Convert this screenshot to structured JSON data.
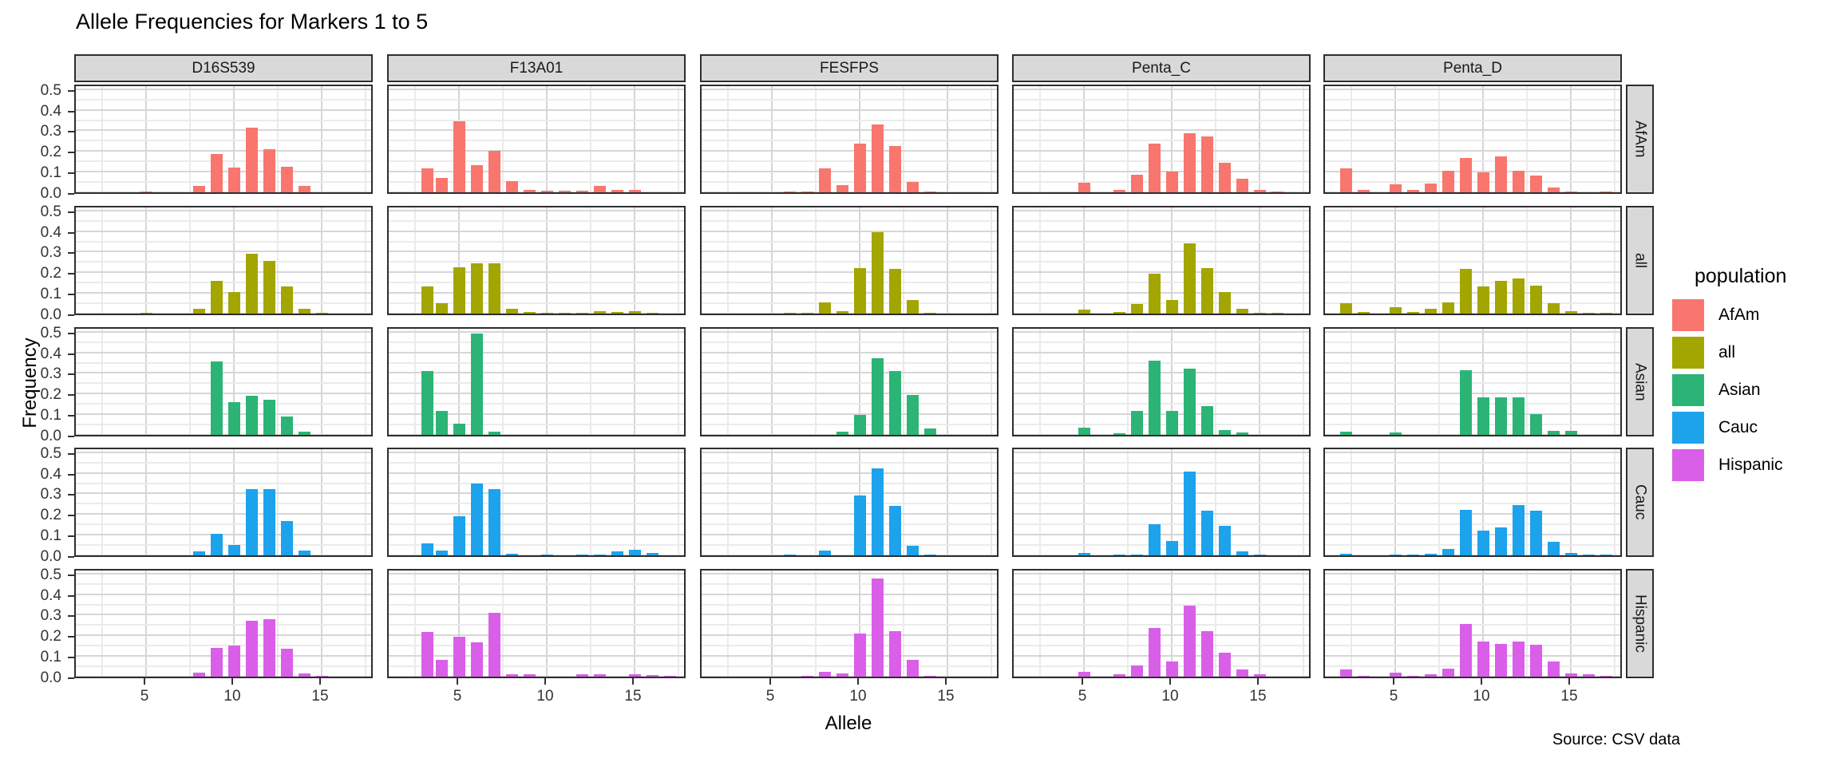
{
  "title": "Allele Frequencies for Markers 1 to 5",
  "caption": "Source: CSV data",
  "axes": {
    "x_label": "Allele",
    "y_label": "Frequency"
  },
  "legend": {
    "title": "population",
    "items": [
      {
        "label": "AfAm",
        "color": "#F8766D"
      },
      {
        "label": "all",
        "color": "#A3A500"
      },
      {
        "label": "Asian",
        "color": "#2CB476"
      },
      {
        "label": "Cauc",
        "color": "#1CA3EC"
      },
      {
        "label": "Hispanic",
        "color": "#DA5FE8"
      }
    ]
  },
  "chart_data": {
    "type": "bar",
    "title": "Allele Frequencies for Markers 1 to 5",
    "xlabel": "Allele",
    "ylabel": "Frequency",
    "facet_columns": [
      "D16S539",
      "F13A01",
      "FESFPS",
      "Penta_C",
      "Penta_D"
    ],
    "facet_rows": [
      "AfAm",
      "all",
      "Asian",
      "Cauc",
      "Hispanic"
    ],
    "x_ticks": [
      5,
      10,
      15
    ],
    "x_tick_labels": [
      "5",
      "10",
      "15"
    ],
    "x_minor_ticks": [
      2.5,
      7.5,
      12.5,
      17.5
    ],
    "xlim": [
      1,
      18
    ],
    "y_ticks": [
      0.0,
      0.1,
      0.2,
      0.3,
      0.4,
      0.5
    ],
    "y_tick_labels": [
      "0.0",
      "0.1",
      "0.2",
      "0.3",
      "0.4",
      "0.5"
    ],
    "y_minor_ticks": [
      0.05,
      0.15,
      0.25,
      0.35,
      0.45
    ],
    "ylim": [
      0,
      0.53
    ],
    "grid": true,
    "legend_position": "right",
    "panels": {
      "D16S539": {
        "AfAm": {
          "alleles": [
            5,
            8,
            9,
            10,
            11,
            12,
            13,
            14
          ],
          "freqs": [
            0.005,
            0.03,
            0.185,
            0.12,
            0.315,
            0.21,
            0.125,
            0.03
          ]
        },
        "all": {
          "alleles": [
            5,
            8,
            9,
            10,
            11,
            12,
            13,
            14,
            15
          ],
          "freqs": [
            0.004,
            0.022,
            0.16,
            0.105,
            0.29,
            0.255,
            0.13,
            0.022,
            0.004
          ]
        },
        "Asian": {
          "alleles": [
            9,
            10,
            11,
            12,
            13,
            14
          ],
          "freqs": [
            0.355,
            0.16,
            0.19,
            0.17,
            0.09,
            0.015
          ]
        },
        "Cauc": {
          "alleles": [
            8,
            9,
            10,
            11,
            12,
            13,
            14
          ],
          "freqs": [
            0.018,
            0.105,
            0.05,
            0.32,
            0.32,
            0.165,
            0.022
          ]
        },
        "Hispanic": {
          "alleles": [
            8,
            9,
            10,
            11,
            12,
            13,
            14,
            15
          ],
          "freqs": [
            0.02,
            0.14,
            0.15,
            0.27,
            0.28,
            0.135,
            0.015,
            0.004
          ]
        }
      },
      "F13A01": {
        "AfAm": {
          "alleles": [
            3.2,
            4,
            5,
            6,
            7,
            8,
            9,
            10,
            11,
            12,
            13,
            14,
            15
          ],
          "freqs": [
            0.115,
            0.07,
            0.345,
            0.13,
            0.2,
            0.055,
            0.012,
            0.008,
            0.008,
            0.008,
            0.03,
            0.013,
            0.012
          ]
        },
        "all": {
          "alleles": [
            3.2,
            4,
            5,
            6,
            7,
            8,
            9,
            10,
            11,
            12,
            13,
            14,
            15,
            16
          ],
          "freqs": [
            0.13,
            0.05,
            0.225,
            0.245,
            0.245,
            0.022,
            0.006,
            0.005,
            0.005,
            0.005,
            0.012,
            0.008,
            0.012,
            0.005
          ]
        },
        "Asian": {
          "alleles": [
            3.2,
            4,
            5,
            6,
            7
          ],
          "freqs": [
            0.31,
            0.115,
            0.055,
            0.49,
            0.015
          ]
        },
        "Cauc": {
          "alleles": [
            3.2,
            4,
            5,
            6,
            7,
            8,
            10,
            12,
            13,
            14,
            15,
            16
          ],
          "freqs": [
            0.06,
            0.022,
            0.19,
            0.35,
            0.32,
            0.006,
            0.004,
            0.004,
            0.004,
            0.018,
            0.028,
            0.01
          ]
        },
        "Hispanic": {
          "alleles": [
            3.2,
            4,
            5,
            6,
            7,
            8,
            9,
            12,
            13,
            15,
            16,
            17
          ],
          "freqs": [
            0.215,
            0.08,
            0.195,
            0.165,
            0.31,
            0.012,
            0.012,
            0.01,
            0.01,
            0.01,
            0.008,
            0.005
          ]
        }
      },
      "FESFPS": {
        "AfAm": {
          "alleles": [
            6,
            7,
            8,
            9,
            10,
            11,
            12,
            13,
            14
          ],
          "freqs": [
            0.005,
            0.005,
            0.115,
            0.035,
            0.235,
            0.33,
            0.225,
            0.05,
            0.004
          ]
        },
        "all": {
          "alleles": [
            6,
            7,
            8,
            9,
            10,
            11,
            12,
            13,
            14
          ],
          "freqs": [
            0.004,
            0.004,
            0.055,
            0.012,
            0.22,
            0.395,
            0.215,
            0.065,
            0.005
          ]
        },
        "Asian": {
          "alleles": [
            9,
            10,
            11,
            12,
            13,
            14
          ],
          "freqs": [
            0.015,
            0.095,
            0.37,
            0.31,
            0.195,
            0.03
          ]
        },
        "Cauc": {
          "alleles": [
            6,
            8,
            10,
            11,
            12,
            13,
            14
          ],
          "freqs": [
            0.004,
            0.025,
            0.29,
            0.42,
            0.24,
            0.045,
            0.003
          ]
        },
        "Hispanic": {
          "alleles": [
            7,
            8,
            9,
            10,
            11,
            12,
            13,
            14
          ],
          "freqs": [
            0.005,
            0.022,
            0.015,
            0.21,
            0.475,
            0.22,
            0.08,
            0.004
          ]
        }
      },
      "Penta_C": {
        "AfAm": {
          "alleles": [
            5,
            7,
            8,
            9,
            10,
            11,
            12,
            13,
            14,
            15,
            16
          ],
          "freqs": [
            0.045,
            0.01,
            0.085,
            0.235,
            0.1,
            0.285,
            0.27,
            0.145,
            0.065,
            0.012,
            0.005
          ]
        },
        "all": {
          "alleles": [
            5,
            7,
            8,
            9,
            10,
            11,
            12,
            13,
            14,
            15,
            16
          ],
          "freqs": [
            0.02,
            0.008,
            0.045,
            0.195,
            0.065,
            0.34,
            0.22,
            0.105,
            0.025,
            0.005,
            0.003
          ]
        },
        "Asian": {
          "alleles": [
            5,
            7,
            8,
            9,
            10,
            11,
            12,
            13,
            14
          ],
          "freqs": [
            0.035,
            0.008,
            0.115,
            0.36,
            0.115,
            0.32,
            0.14,
            0.025,
            0.012
          ]
        },
        "Cauc": {
          "alleles": [
            5,
            7,
            8,
            9,
            10,
            11,
            12,
            13,
            14,
            15
          ],
          "freqs": [
            0.012,
            0.005,
            0.005,
            0.15,
            0.07,
            0.405,
            0.215,
            0.145,
            0.02,
            0.004
          ]
        },
        "Hispanic": {
          "alleles": [
            5,
            7,
            8,
            9,
            10,
            11,
            12,
            13,
            14,
            15
          ],
          "freqs": [
            0.022,
            0.01,
            0.055,
            0.235,
            0.075,
            0.345,
            0.22,
            0.115,
            0.035,
            0.012
          ]
        }
      },
      "Penta_D": {
        "AfAm": {
          "alleles": [
            2.2,
            3.2,
            5,
            6,
            7,
            8,
            9,
            10,
            11,
            12,
            13,
            14,
            15,
            17
          ],
          "freqs": [
            0.115,
            0.012,
            0.04,
            0.013,
            0.044,
            0.105,
            0.165,
            0.095,
            0.175,
            0.105,
            0.08,
            0.025,
            0.004,
            0.004
          ]
        },
        "all": {
          "alleles": [
            2.2,
            3.2,
            5,
            6,
            7,
            8,
            9,
            10,
            11,
            12,
            13,
            14,
            15,
            16,
            17
          ],
          "freqs": [
            0.05,
            0.008,
            0.03,
            0.008,
            0.025,
            0.055,
            0.215,
            0.13,
            0.16,
            0.17,
            0.135,
            0.05,
            0.012,
            0.005,
            0.004
          ]
        },
        "Asian": {
          "alleles": [
            2.2,
            5,
            9,
            10,
            11,
            12,
            13,
            14,
            15
          ],
          "freqs": [
            0.015,
            0.012,
            0.315,
            0.18,
            0.18,
            0.18,
            0.1,
            0.02,
            0.018
          ]
        },
        "Cauc": {
          "alleles": [
            2.2,
            5,
            6,
            7,
            8,
            9,
            10,
            11,
            12,
            13,
            14,
            15,
            16,
            17
          ],
          "freqs": [
            0.008,
            0.005,
            0.005,
            0.008,
            0.03,
            0.22,
            0.12,
            0.135,
            0.245,
            0.215,
            0.065,
            0.012,
            0.005,
            0.004
          ]
        },
        "Hispanic": {
          "alleles": [
            2.2,
            3.2,
            5,
            6,
            7,
            8,
            9,
            10,
            11,
            12,
            13,
            14,
            15,
            16,
            17
          ],
          "freqs": [
            0.035,
            0.005,
            0.02,
            0.005,
            0.01,
            0.04,
            0.255,
            0.17,
            0.16,
            0.17,
            0.155,
            0.075,
            0.015,
            0.01,
            0.005
          ]
        }
      }
    }
  }
}
